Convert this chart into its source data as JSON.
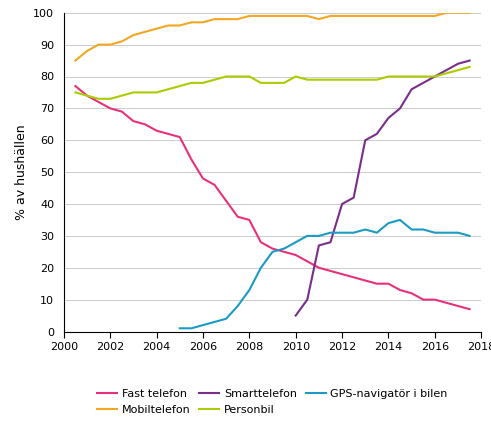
{
  "title": "",
  "ylabel": "% av hushällen",
  "xlim": [
    2000,
    2018
  ],
  "ylim": [
    0,
    100
  ],
  "xticks": [
    2000,
    2002,
    2004,
    2006,
    2008,
    2010,
    2012,
    2014,
    2016,
    2018
  ],
  "yticks": [
    0,
    10,
    20,
    30,
    40,
    50,
    60,
    70,
    80,
    90,
    100
  ],
  "legend_row1": [
    {
      "label": "Fast telefon",
      "color": "#E8317A"
    },
    {
      "label": "Mobiltelefon",
      "color": "#F5A623"
    },
    {
      "label": "Smarttelefon",
      "color": "#7B2D8B"
    }
  ],
  "legend_row2": [
    {
      "label": "Personbil",
      "color": "#AACC00"
    },
    {
      "label": "GPS-navigatör i bilen",
      "color": "#1B9AC4"
    }
  ],
  "fast_telefon": {
    "x": [
      2000.5,
      2001.0,
      2001.5,
      2002.0,
      2002.5,
      2003.0,
      2003.5,
      2004.0,
      2004.5,
      2005.0,
      2005.5,
      2006.0,
      2006.5,
      2007.0,
      2007.5,
      2008.0,
      2008.5,
      2009.0,
      2009.5,
      2010.0,
      2010.5,
      2011.0,
      2011.5,
      2012.0,
      2012.5,
      2013.0,
      2013.5,
      2014.0,
      2014.5,
      2015.0,
      2015.5,
      2016.0,
      2016.5,
      2017.0,
      2017.5
    ],
    "y": [
      77,
      74,
      72,
      70,
      69,
      66,
      65,
      63,
      62,
      61,
      54,
      48,
      46,
      41,
      36,
      35,
      28,
      26,
      25,
      24,
      22,
      20,
      19,
      18,
      17,
      16,
      15,
      15,
      13,
      12,
      10,
      10,
      9,
      8,
      7
    ]
  },
  "mobiltelefon": {
    "x": [
      2000.5,
      2001.0,
      2001.5,
      2002.0,
      2002.5,
      2003.0,
      2003.5,
      2004.0,
      2004.5,
      2005.0,
      2005.5,
      2006.0,
      2006.5,
      2007.0,
      2007.5,
      2008.0,
      2008.5,
      2009.0,
      2009.5,
      2010.0,
      2010.5,
      2011.0,
      2011.5,
      2012.0,
      2012.5,
      2013.0,
      2013.5,
      2014.0,
      2014.5,
      2015.0,
      2015.5,
      2016.0,
      2016.5,
      2017.0,
      2017.5
    ],
    "y": [
      85,
      88,
      90,
      90,
      91,
      93,
      94,
      95,
      96,
      96,
      97,
      97,
      98,
      98,
      98,
      99,
      99,
      99,
      99,
      99,
      99,
      98,
      99,
      99,
      99,
      99,
      99,
      99,
      99,
      99,
      99,
      99,
      100,
      100,
      100
    ]
  },
  "smarttelefon": {
    "x": [
      2010.0,
      2010.5,
      2011.0,
      2011.5,
      2012.0,
      2012.5,
      2013.0,
      2013.5,
      2014.0,
      2014.5,
      2015.0,
      2015.5,
      2016.0,
      2016.5,
      2017.0,
      2017.5
    ],
    "y": [
      5,
      10,
      27,
      28,
      40,
      42,
      60,
      62,
      67,
      70,
      76,
      78,
      80,
      82,
      84,
      85
    ]
  },
  "personbil": {
    "x": [
      2000.5,
      2001.0,
      2001.5,
      2002.0,
      2002.5,
      2003.0,
      2003.5,
      2004.0,
      2004.5,
      2005.0,
      2005.5,
      2006.0,
      2006.5,
      2007.0,
      2007.5,
      2008.0,
      2008.5,
      2009.0,
      2009.5,
      2010.0,
      2010.5,
      2011.0,
      2011.5,
      2012.0,
      2012.5,
      2013.0,
      2013.5,
      2014.0,
      2014.5,
      2015.0,
      2015.5,
      2016.0,
      2016.5,
      2017.0,
      2017.5
    ],
    "y": [
      75,
      74,
      73,
      73,
      74,
      75,
      75,
      75,
      76,
      77,
      78,
      78,
      79,
      80,
      80,
      80,
      78,
      78,
      78,
      80,
      79,
      79,
      79,
      79,
      79,
      79,
      79,
      80,
      80,
      80,
      80,
      80,
      81,
      82,
      83
    ]
  },
  "gps": {
    "x": [
      2005.0,
      2005.5,
      2006.0,
      2006.5,
      2007.0,
      2007.5,
      2008.0,
      2008.5,
      2009.0,
      2009.5,
      2010.0,
      2010.5,
      2011.0,
      2011.5,
      2012.0,
      2012.5,
      2013.0,
      2013.5,
      2014.0,
      2014.5,
      2015.0,
      2015.5,
      2016.0,
      2016.5,
      2017.0,
      2017.5
    ],
    "y": [
      1,
      1,
      2,
      3,
      4,
      8,
      13,
      20,
      25,
      26,
      28,
      30,
      30,
      31,
      31,
      31,
      32,
      31,
      34,
      35,
      32,
      32,
      31,
      31,
      31,
      30
    ]
  },
  "line_width": 1.5,
  "grid_color": "#cccccc",
  "grid_lw": 0.7,
  "tick_fontsize": 8,
  "ylabel_fontsize": 9,
  "legend_fontsize": 8
}
